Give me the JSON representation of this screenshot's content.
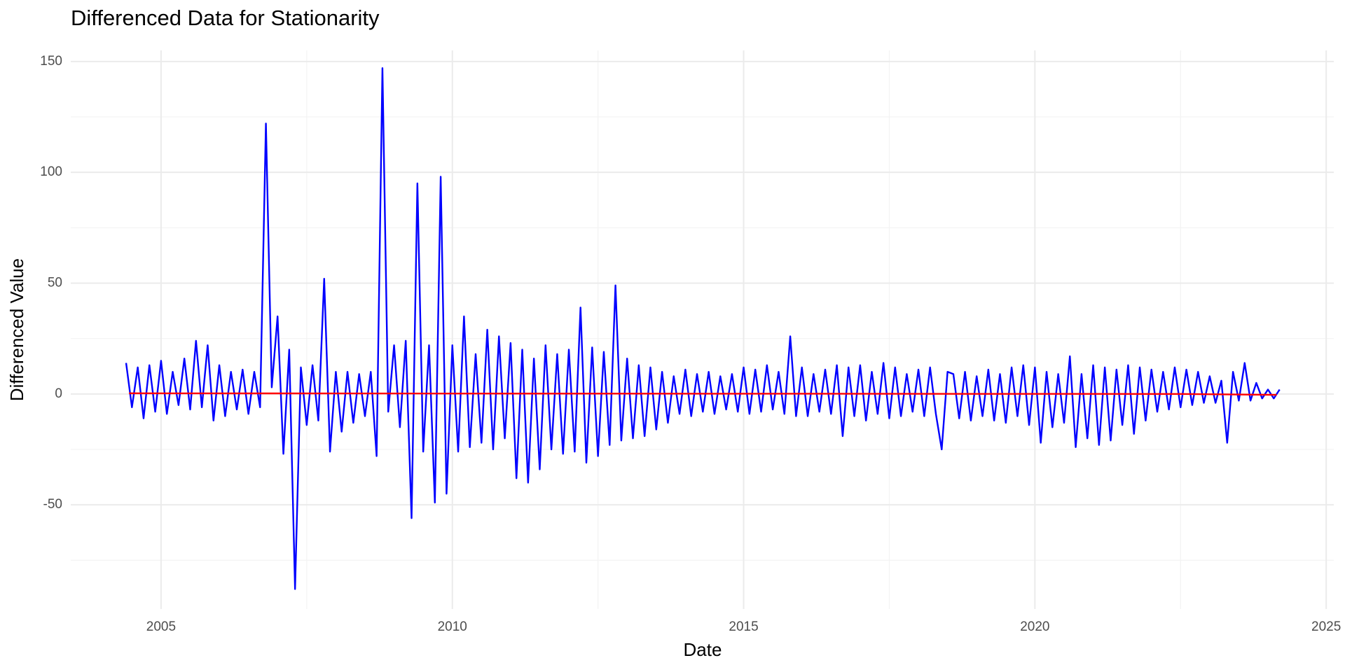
{
  "chart_data": {
    "type": "line",
    "title": "Differenced Data for Stationarity",
    "x_label": "Date",
    "y_label": "Differenced Value",
    "xlim": [
      2003.45,
      2025.13
    ],
    "ylim": [
      -97,
      155
    ],
    "xticks": [
      2005,
      2010,
      2015,
      2020,
      2025
    ],
    "yticks": [
      -50,
      0,
      50,
      100,
      150
    ],
    "grid": true,
    "series": [
      {
        "color": "#0000ff",
        "x": [
          2004.4,
          2004.5,
          2004.6,
          2004.7,
          2004.8,
          2004.9,
          2005.0,
          2005.1,
          2005.2,
          2005.3,
          2005.4,
          2005.5,
          2005.6,
          2005.7,
          2005.8,
          2005.9,
          2006.0,
          2006.1,
          2006.2,
          2006.3,
          2006.4,
          2006.5,
          2006.6,
          2006.7,
          2006.8,
          2006.9,
          2007.0,
          2007.1,
          2007.2,
          2007.3,
          2007.4,
          2007.5,
          2007.6,
          2007.7,
          2007.8,
          2007.9,
          2008.0,
          2008.1,
          2008.2,
          2008.3,
          2008.4,
          2008.5,
          2008.6,
          2008.7,
          2008.8,
          2008.9,
          2009.0,
          2009.1,
          2009.2,
          2009.3,
          2009.4,
          2009.5,
          2009.6,
          2009.7,
          2009.8,
          2009.9,
          2010.0,
          2010.1,
          2010.2,
          2010.3,
          2010.4,
          2010.5,
          2010.6,
          2010.7,
          2010.8,
          2010.9,
          2011.0,
          2011.1,
          2011.2,
          2011.3,
          2011.4,
          2011.5,
          2011.6,
          2011.7,
          2011.8,
          2011.9,
          2012.0,
          2012.1,
          2012.2,
          2012.3,
          2012.4,
          2012.5,
          2012.6,
          2012.7,
          2012.8,
          2012.9,
          2013.0,
          2013.1,
          2013.2,
          2013.3,
          2013.4,
          2013.5,
          2013.6,
          2013.7,
          2013.8,
          2013.9,
          2014.0,
          2014.1,
          2014.2,
          2014.3,
          2014.4,
          2014.5,
          2014.6,
          2014.7,
          2014.8,
          2014.9,
          2015.0,
          2015.1,
          2015.2,
          2015.3,
          2015.4,
          2015.5,
          2015.6,
          2015.7,
          2015.8,
          2015.9,
          2016.0,
          2016.1,
          2016.2,
          2016.3,
          2016.4,
          2016.5,
          2016.6,
          2016.7,
          2016.8,
          2016.9,
          2017.0,
          2017.1,
          2017.2,
          2017.3,
          2017.4,
          2017.5,
          2017.6,
          2017.7,
          2017.8,
          2017.9,
          2018.0,
          2018.1,
          2018.2,
          2018.3,
          2018.4,
          2018.5,
          2018.6,
          2018.7,
          2018.8,
          2018.9,
          2019.0,
          2019.1,
          2019.2,
          2019.3,
          2019.4,
          2019.5,
          2019.6,
          2019.7,
          2019.8,
          2019.9,
          2020.0,
          2020.1,
          2020.2,
          2020.3,
          2020.4,
          2020.5,
          2020.6,
          2020.7,
          2020.8,
          2020.9,
          2021.0,
          2021.1,
          2021.2,
          2021.3,
          2021.4,
          2021.5,
          2021.6,
          2021.7,
          2021.8,
          2021.9,
          2022.0,
          2022.1,
          2022.2,
          2022.3,
          2022.4,
          2022.5,
          2022.6,
          2022.7,
          2022.8,
          2022.9,
          2023.0,
          2023.1,
          2023.2,
          2023.3,
          2023.4,
          2023.5,
          2023.6,
          2023.7,
          2023.8,
          2023.9,
          2024.0,
          2024.1,
          2024.2
        ],
        "values": [
          14,
          -6,
          12,
          -11,
          13,
          -8,
          15,
          -9,
          10,
          -5,
          16,
          -7,
          24,
          -6,
          22,
          -12,
          13,
          -10,
          10,
          -7,
          11,
          -9,
          10,
          -6,
          122,
          3,
          35,
          -27,
          20,
          -88,
          12,
          -14,
          13,
          -12,
          52,
          -26,
          10,
          -17,
          10,
          -13,
          9,
          -10,
          10,
          -28,
          147,
          -8,
          22,
          -15,
          24,
          -56,
          95,
          -26,
          22,
          -49,
          98,
          -45,
          22,
          -26,
          35,
          -24,
          18,
          -22,
          29,
          -25,
          26,
          -20,
          23,
          -38,
          20,
          -40,
          16,
          -34,
          22,
          -25,
          18,
          -27,
          20,
          -26,
          39,
          -31,
          21,
          -28,
          19,
          -23,
          49,
          -21,
          16,
          -20,
          13,
          -19,
          12,
          -16,
          10,
          -13,
          8,
          -9,
          11,
          -10,
          9,
          -8,
          10,
          -9,
          8,
          -7,
          9,
          -8,
          12,
          -9,
          11,
          -8,
          13,
          -7,
          10,
          -9,
          26,
          -10,
          12,
          -10,
          9,
          -8,
          11,
          -9,
          13,
          -19,
          12,
          -10,
          13,
          -12,
          10,
          -9,
          14,
          -11,
          12,
          -10,
          9,
          -8,
          11,
          -10,
          12,
          -9,
          -25,
          10,
          9,
          -11,
          10,
          -12,
          8,
          -10,
          11,
          -12,
          9,
          -13,
          12,
          -10,
          13,
          -14,
          12,
          -22,
          10,
          -15,
          9,
          -13,
          17,
          -24,
          9,
          -20,
          13,
          -23,
          12,
          -21,
          11,
          -14,
          13,
          -18,
          12,
          -12,
          11,
          -8,
          10,
          -7,
          12,
          -6,
          11,
          -5,
          10,
          -4,
          8,
          -4,
          6,
          -22,
          10,
          -3,
          14,
          -3,
          5,
          -2,
          2,
          -2,
          2
        ]
      },
      {
        "color": "#ff0000",
        "x": [
          2004.45,
          2022.5,
          2024.15
        ],
        "values": [
          0.3,
          0,
          -0.4
        ]
      }
    ]
  }
}
